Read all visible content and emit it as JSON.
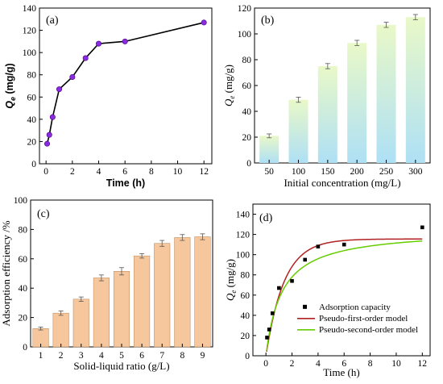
{
  "colors": {
    "line_a": "#000000",
    "marker_a": "#8a2be2",
    "bar_b_top": "#e9f8c8",
    "bar_b_bottom": "#aee0f5",
    "bar_c": "#f6c79d",
    "bar_c_edge": "#b78455",
    "pfo": "#b22222",
    "pso": "#66cc00"
  },
  "chart_data": [
    {
      "type": "line",
      "panel": "(a)",
      "xlabel": "Time (h)",
      "ylabel": "Q",
      "ylabel_sub": "e",
      "ylabel_unit": " (mg/g)",
      "xlim": [
        -0.5,
        12.6
      ],
      "ylim": [
        0,
        140
      ],
      "xticks": [
        0,
        2,
        4,
        6,
        8,
        10,
        12
      ],
      "yticks": [
        0,
        20,
        40,
        60,
        80,
        100,
        120,
        140
      ],
      "x": [
        0.083,
        0.25,
        0.5,
        1,
        2,
        3,
        4,
        6,
        12
      ],
      "y": [
        18,
        26,
        42,
        67,
        78,
        95,
        108,
        110,
        127
      ]
    },
    {
      "type": "bar",
      "panel": "(b)",
      "xlabel": "Initial concentration (mg/L)",
      "ylabel": "Q",
      "ylabel_sub": "e",
      "ylabel_unit": " (mg/g)",
      "ylim": [
        0,
        120
      ],
      "yticks": [
        0,
        20,
        40,
        60,
        80,
        100,
        120
      ],
      "categories": [
        "50",
        "100",
        "150",
        "200",
        "250",
        "300"
      ],
      "values": [
        21,
        49,
        75,
        93,
        107,
        113
      ],
      "errors": [
        1.5,
        2,
        2,
        2,
        2,
        2
      ]
    },
    {
      "type": "bar",
      "panel": "(c)",
      "xlabel": "Solid-liquid ratio (g/L)",
      "ylabel": "Adsorption efficiency /%",
      "ylim": [
        0,
        100
      ],
      "yticks": [
        0,
        20,
        40,
        60,
        80,
        100
      ],
      "categories": [
        "1",
        "2",
        "3",
        "4",
        "5",
        "6",
        "7",
        "8",
        "9"
      ],
      "values": [
        12.5,
        23,
        32.5,
        47,
        51.5,
        62,
        70.5,
        74.5,
        75
      ],
      "errors": [
        1,
        1.5,
        1.5,
        2,
        2.5,
        1.5,
        2,
        2,
        2
      ]
    },
    {
      "type": "scatter",
      "panel": "(d)",
      "xlabel": "Time (h)",
      "ylabel": "Q",
      "ylabel_sub": "e",
      "ylabel_unit": " (mg/g)",
      "xlim": [
        -1,
        12.6
      ],
      "ylim": [
        0,
        150
      ],
      "xticks": [
        0,
        2,
        4,
        6,
        8,
        10,
        12
      ],
      "yticks": [
        0,
        20,
        40,
        60,
        80,
        100,
        120,
        140
      ],
      "x": [
        0.083,
        0.25,
        0.5,
        1,
        2,
        3,
        4,
        6,
        12
      ],
      "y": [
        18,
        26,
        42,
        67,
        74,
        95,
        108,
        110,
        127
      ],
      "legend": [
        "Adsorption capacity",
        "Pseudo-first-order model",
        "Pseudo-second-order model"
      ],
      "pfo": {
        "qe": 115.5,
        "k1": 0.72
      },
      "pso": {
        "qe": 125,
        "k2": 0.0066
      }
    }
  ]
}
